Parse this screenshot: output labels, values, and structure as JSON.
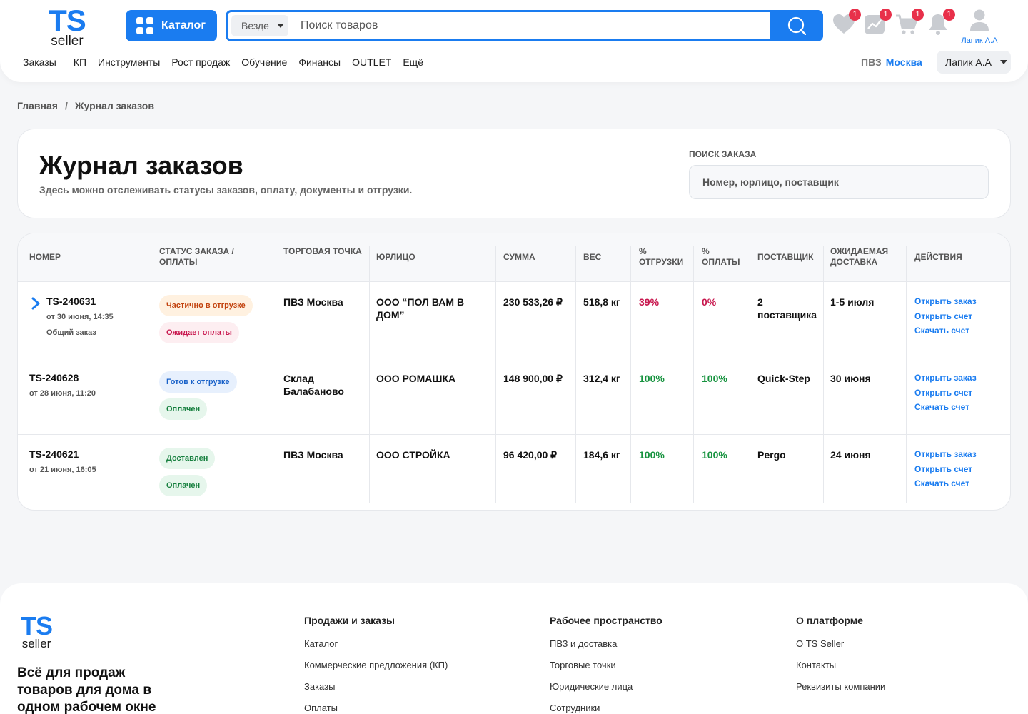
{
  "header": {
    "logo_ts": "TS",
    "logo_seller": "seller",
    "catalog_label": "Каталог",
    "search_scope": "Везде",
    "search_placeholder": "Поиск товаров",
    "badges": {
      "favorites": "1",
      "analytics": "1",
      "cart": "1",
      "notifications": "1"
    },
    "profile_name": "Лапик А.А",
    "nav": [
      "Заказы",
      "КП",
      "Инструменты",
      "Рост продаж",
      "Обучение",
      "Финансы",
      "OUTLET",
      "Ещё"
    ],
    "pvz_label": "ПВЗ",
    "pvz_city": "Москва",
    "user_dropdown": "Лапик А.А"
  },
  "breadcrumb": {
    "home": "Главная",
    "sep": "/",
    "current": "Журнал заказов"
  },
  "page": {
    "title": "Журнал заказов",
    "subtitle": "Здесь можно отслеживать статусы заказов, оплату, документы и отгрузки.",
    "order_search_label": "ПОИСК ЗАКАЗА",
    "order_search_placeholder": "Номер, юрлицо, поставщик"
  },
  "table": {
    "headers": {
      "number": "Номер",
      "status": "Статус заказа / оплаты",
      "point": "Торговая точка",
      "entity": "Юрлицо",
      "sum": "Сумма",
      "weight": "Вес",
      "ship_pct": "% отгрузки",
      "pay_pct": "% оплаты",
      "supplier": "Поставщик",
      "delivery": "Ожидаемая доставка",
      "actions": "Действия"
    },
    "action_labels": {
      "open_order": "Открыть заказ",
      "open_invoice": "Открыть счет",
      "download_invoice": "Скачать счет"
    },
    "rows": [
      {
        "number": "TS-240631",
        "date": "от 30 июня, 14:35",
        "note": "Общий заказ",
        "order_status": "Частично в отгрузке",
        "pay_status": "Ожидает оплаты",
        "point": "ПВЗ Москва",
        "entity": "ООО “ПОЛ ВАМ В ДОМ”",
        "sum": "230 533,26 ₽",
        "weight": "518,8 кг",
        "ship_pct": "39%",
        "pay_pct": "0%",
        "supplier": "2 поставщика",
        "delivery": "1-5 июля"
      },
      {
        "number": "TS-240628",
        "date": "от 28 июня, 11:20",
        "note": "",
        "order_status": "Готов к отгрузке",
        "pay_status": "Оплачен",
        "point": "Склад Балабаново",
        "entity": "ООО РОМАШКА",
        "sum": "148 900,00 ₽",
        "weight": "312,4 кг",
        "ship_pct": "100%",
        "pay_pct": "100%",
        "supplier": "Quick-Step",
        "delivery": "30 июня"
      },
      {
        "number": "TS-240621",
        "date": "от 21 июня, 16:05",
        "note": "",
        "order_status": "Доставлен",
        "pay_status": "Оплачен",
        "point": "ПВЗ Москва",
        "entity": "ООО СТРОЙКА",
        "sum": "96 420,00 ₽",
        "weight": "184,6 кг",
        "ship_pct": "100%",
        "pay_pct": "100%",
        "supplier": "Pergo",
        "delivery": "24 июня"
      }
    ]
  },
  "footer": {
    "logo_ts": "TS",
    "logo_seller": "seller",
    "tagline": "Всё для продаж товаров для дома в одном рабочем окне",
    "columns": [
      {
        "title": "Продажи и заказы",
        "links": [
          "Каталог",
          "Коммерческие предложения (КП)",
          "Заказы",
          "Оплаты"
        ]
      },
      {
        "title": "Рабочее пространство",
        "links": [
          "ПВЗ и доставка",
          "Торговые точки",
          "Юридические лица",
          "Сотрудники"
        ]
      },
      {
        "title": "О платформе",
        "links": [
          "О TS Seller",
          "Контакты",
          "Реквизиты компании"
        ]
      }
    ]
  },
  "colors": {
    "accent": "#1a7cf0",
    "badge": "#e8304a",
    "danger": "#c8174e",
    "success": "#17933f"
  }
}
